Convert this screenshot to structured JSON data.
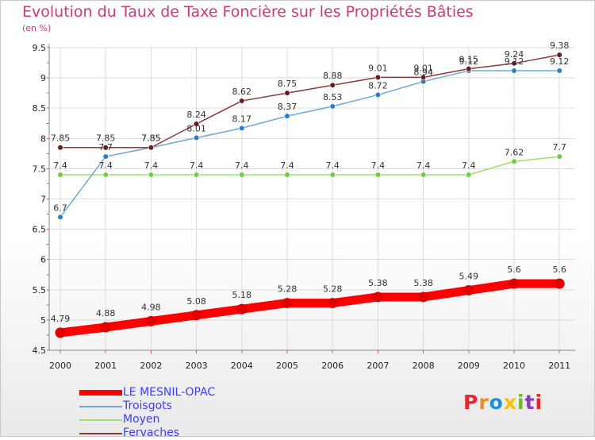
{
  "title": "Evolution du Taux de Taxe Foncière sur les Propriétés Bâties",
  "units": "(en %)",
  "logo": {
    "text": "Proxiti",
    "colors": [
      "#e8262b",
      "#f08a1c",
      "#1e8fd6",
      "#f2c200",
      "#6bbb2d",
      "#8c3fb0",
      "#e8262b"
    ]
  },
  "chart_data": {
    "type": "line",
    "title": "Evolution du Taux de Taxe Foncière sur les Propriétés Bâties",
    "ylabel": "(en %)",
    "xlabel": "",
    "categories": [
      "2000",
      "2001",
      "2002",
      "2003",
      "2004",
      "2005",
      "2006",
      "2007",
      "2008",
      "2009",
      "2010",
      "2011"
    ],
    "ylim": [
      4.5,
      9.5
    ],
    "yticks": [
      "4.5",
      "5",
      "5.5",
      "6",
      "6.5",
      "7",
      "7.5",
      "8",
      "8.5",
      "9",
      "9.5"
    ],
    "grid": true,
    "series": [
      {
        "name": "LE MESNIL-OPAC",
        "color": "#ff0000",
        "marker": "#e00000",
        "thick": true,
        "values": [
          4.79,
          4.88,
          4.98,
          5.08,
          5.18,
          5.28,
          5.28,
          5.38,
          5.38,
          5.49,
          5.6,
          5.6
        ],
        "labels": [
          "4.79",
          "4.88",
          "4.98",
          "5.08",
          "5.18",
          "5.28",
          "5.28",
          "5.38",
          "5.38",
          "5.49",
          "5.6",
          "5.6"
        ]
      },
      {
        "name": "Troisgots",
        "color": "#6ea8d8",
        "marker": "#2e7dc4",
        "thick": false,
        "values": [
          6.7,
          7.7,
          7.85,
          8.01,
          8.17,
          8.37,
          8.53,
          8.72,
          8.94,
          9.12,
          9.12,
          9.12
        ],
        "labels": [
          "6.7",
          "7.7",
          "7.85",
          "8.01",
          "8.17",
          "8.37",
          "8.53",
          "8.72",
          "8.94",
          "9.12",
          "9.12",
          "9.12"
        ]
      },
      {
        "name": "Moyen",
        "color": "#99e06e",
        "marker": "#6ed040",
        "thick": false,
        "values": [
          7.4,
          7.4,
          7.4,
          7.4,
          7.4,
          7.4,
          7.4,
          7.4,
          7.4,
          7.4,
          7.62,
          7.7
        ],
        "labels": [
          "7.4",
          "7.4",
          "7.4",
          "7.4",
          "7.4",
          "7.4",
          "7.4",
          "7.4",
          "7.4",
          "7.4",
          "7.62",
          "7.7"
        ]
      },
      {
        "name": "Fervaches",
        "color": "#8b3a3a",
        "marker": "#6b1a1a",
        "thick": false,
        "values": [
          7.85,
          7.85,
          7.85,
          8.24,
          8.62,
          8.75,
          8.88,
          9.01,
          9.01,
          9.15,
          9.24,
          9.38
        ],
        "labels": [
          "7.85",
          "7.85",
          "7.85",
          "8.24",
          "8.62",
          "8.75",
          "8.88",
          "9.01",
          "9.01",
          "9.15",
          "9.24",
          "9.38"
        ]
      }
    ]
  }
}
